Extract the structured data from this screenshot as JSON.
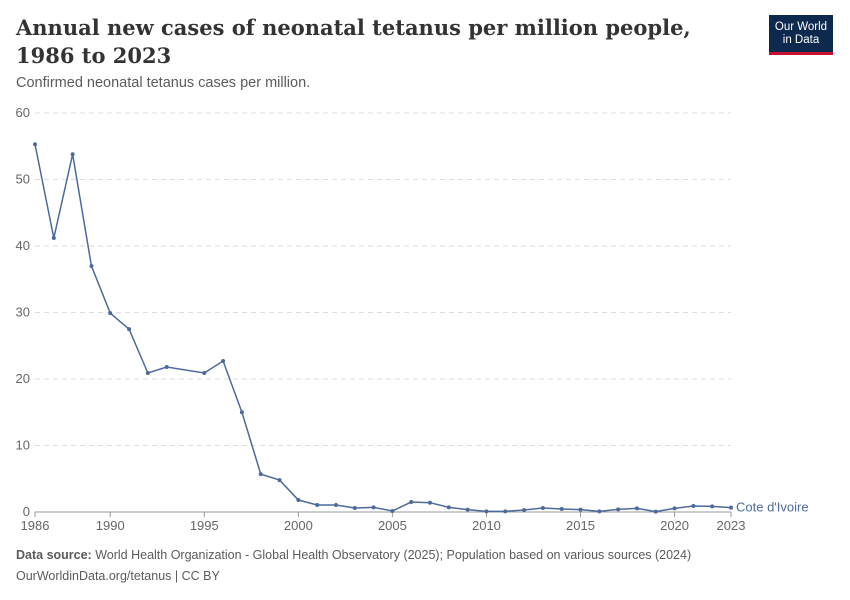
{
  "header": {
    "title": "Annual new cases of neonatal tetanus per million people, 1986 to 2023",
    "subtitle": "Confirmed neonatal tetanus cases per million."
  },
  "logo": {
    "line1": "Our World",
    "line2": "in Data"
  },
  "footer": {
    "source_label": "Data source:",
    "source_text": " World Health Organization - Global Health Observatory (2025); Population based on various sources (2024)",
    "license": "OurWorldinData.org/tetanus | CC BY"
  },
  "colors": {
    "series": "#4c6a9c",
    "grid": "#dddddd",
    "axis": "#999999"
  },
  "chart_data": {
    "type": "line",
    "title": "Annual new cases of neonatal tetanus per million people, 1986 to 2023",
    "subtitle": "Confirmed neonatal tetanus cases per million.",
    "xlim": [
      1986,
      2023
    ],
    "ylim": [
      0,
      60
    ],
    "x_ticks": [
      1986,
      1990,
      1995,
      2000,
      2005,
      2010,
      2015,
      2020,
      2023
    ],
    "y_ticks": [
      0,
      10,
      20,
      30,
      40,
      50,
      60
    ],
    "grid": "horizontal dashed",
    "series": [
      {
        "name": "Cote d'Ivoire",
        "x": [
          1986,
          1987,
          1988,
          1989,
          1990,
          1991,
          1992,
          1993,
          1995,
          1996,
          1997,
          1998,
          1999,
          2000,
          2001,
          2002,
          2003,
          2004,
          2005,
          2006,
          2007,
          2008,
          2009,
          2010,
          2011,
          2012,
          2013,
          2014,
          2015,
          2016,
          2017,
          2018,
          2019,
          2020,
          2021,
          2022,
          2023
        ],
        "y": [
          55.3,
          41.2,
          53.8,
          37.0,
          29.9,
          27.5,
          20.9,
          21.8,
          20.9,
          22.7,
          15.0,
          5.7,
          4.8,
          1.8,
          1.05,
          1.05,
          0.6,
          0.7,
          0.15,
          1.5,
          1.4,
          0.7,
          0.35,
          0.1,
          0.1,
          0.3,
          0.6,
          0.45,
          0.35,
          0.1,
          0.4,
          0.55,
          0.05,
          0.55,
          0.9,
          0.85,
          0.65
        ]
      }
    ]
  }
}
